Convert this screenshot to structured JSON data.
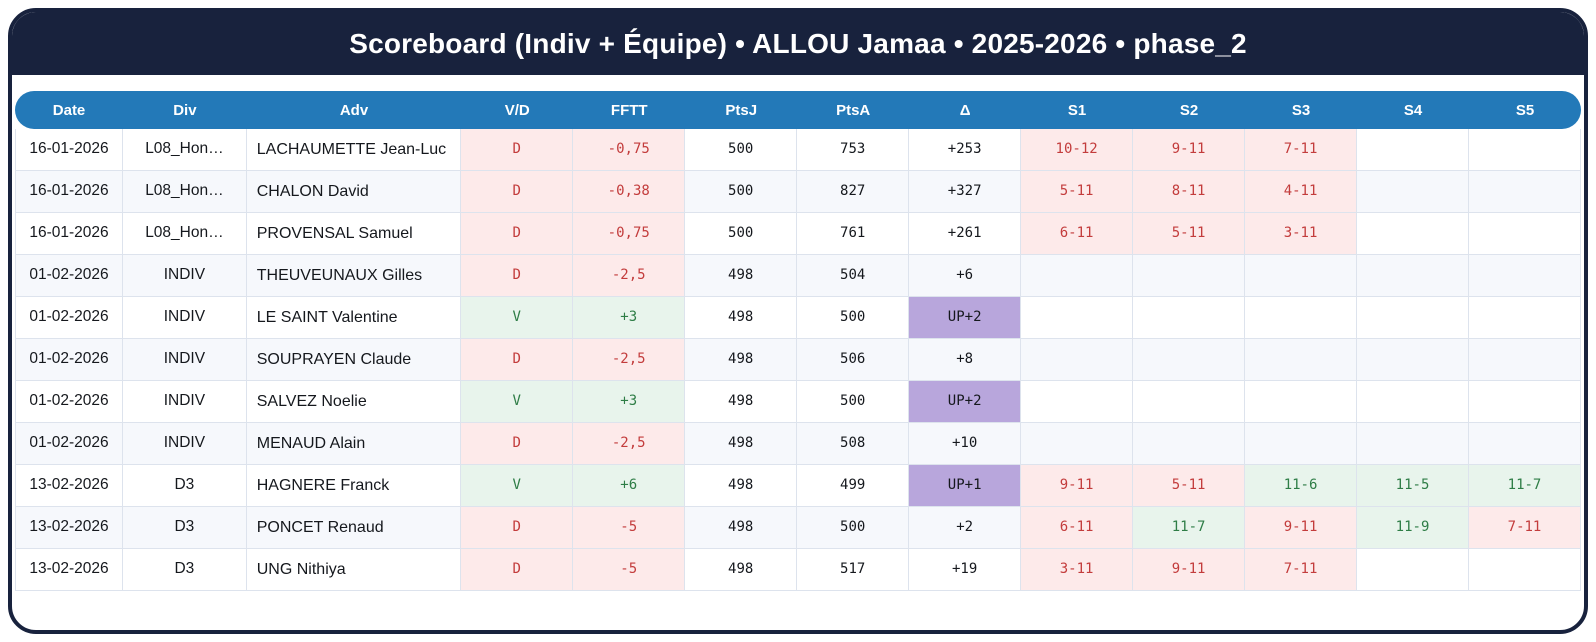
{
  "title": "Scoreboard (Indiv + Équipe) • ALLOU Jamaa • 2025-2026 • phase_2",
  "colors": {
    "frame_navy": "#18223d",
    "header_blue": "#2379b8",
    "win_bg": "#e8f4ec",
    "win_text": "#2e7d46",
    "loss_bg": "#fdeaea",
    "loss_text": "#c33c3c",
    "up_bg": "#b8a6dc",
    "row_stripe": "#f6f8fc"
  },
  "table": {
    "columns": [
      "Date",
      "Div",
      "Adv",
      "V/D",
      "FFTT",
      "PtsJ",
      "PtsA",
      "Δ",
      "S1",
      "S2",
      "S3",
      "S4",
      "S5"
    ],
    "rows": [
      {
        "date": "16-01-2026",
        "div": "L08_Hon…",
        "adv": "LACHAUMETTE Jean-Luc",
        "vd": "D",
        "fftt": "-0,75",
        "ptsj": "500",
        "ptsa": "753",
        "delta": "+253",
        "delta_up": false,
        "sets": [
          {
            "text": "10-12",
            "state": "l"
          },
          {
            "text": "9-11",
            "state": "l"
          },
          {
            "text": "7-11",
            "state": "l"
          },
          {
            "text": "",
            "state": ""
          },
          {
            "text": "",
            "state": ""
          }
        ]
      },
      {
        "date": "16-01-2026",
        "div": "L08_Hon…",
        "adv": "CHALON David",
        "vd": "D",
        "fftt": "-0,38",
        "ptsj": "500",
        "ptsa": "827",
        "delta": "+327",
        "delta_up": false,
        "sets": [
          {
            "text": "5-11",
            "state": "l"
          },
          {
            "text": "8-11",
            "state": "l"
          },
          {
            "text": "4-11",
            "state": "l"
          },
          {
            "text": "",
            "state": ""
          },
          {
            "text": "",
            "state": ""
          }
        ]
      },
      {
        "date": "16-01-2026",
        "div": "L08_Hon…",
        "adv": "PROVENSAL Samuel",
        "vd": "D",
        "fftt": "-0,75",
        "ptsj": "500",
        "ptsa": "761",
        "delta": "+261",
        "delta_up": false,
        "sets": [
          {
            "text": "6-11",
            "state": "l"
          },
          {
            "text": "5-11",
            "state": "l"
          },
          {
            "text": "3-11",
            "state": "l"
          },
          {
            "text": "",
            "state": ""
          },
          {
            "text": "",
            "state": ""
          }
        ]
      },
      {
        "date": "01-02-2026",
        "div": "INDIV",
        "adv": "THEUVEUNAUX Gilles",
        "vd": "D",
        "fftt": "-2,5",
        "ptsj": "498",
        "ptsa": "504",
        "delta": "+6",
        "delta_up": false,
        "sets": [
          {
            "text": "",
            "state": ""
          },
          {
            "text": "",
            "state": ""
          },
          {
            "text": "",
            "state": ""
          },
          {
            "text": "",
            "state": ""
          },
          {
            "text": "",
            "state": ""
          }
        ]
      },
      {
        "date": "01-02-2026",
        "div": "INDIV",
        "adv": "LE SAINT Valentine",
        "vd": "V",
        "fftt": "+3",
        "ptsj": "498",
        "ptsa": "500",
        "delta": "UP+2",
        "delta_up": true,
        "sets": [
          {
            "text": "",
            "state": ""
          },
          {
            "text": "",
            "state": ""
          },
          {
            "text": "",
            "state": ""
          },
          {
            "text": "",
            "state": ""
          },
          {
            "text": "",
            "state": ""
          }
        ]
      },
      {
        "date": "01-02-2026",
        "div": "INDIV",
        "adv": "SOUPRAYEN Claude",
        "vd": "D",
        "fftt": "-2,5",
        "ptsj": "498",
        "ptsa": "506",
        "delta": "+8",
        "delta_up": false,
        "sets": [
          {
            "text": "",
            "state": ""
          },
          {
            "text": "",
            "state": ""
          },
          {
            "text": "",
            "state": ""
          },
          {
            "text": "",
            "state": ""
          },
          {
            "text": "",
            "state": ""
          }
        ]
      },
      {
        "date": "01-02-2026",
        "div": "INDIV",
        "adv": "SALVEZ Noelie",
        "vd": "V",
        "fftt": "+3",
        "ptsj": "498",
        "ptsa": "500",
        "delta": "UP+2",
        "delta_up": true,
        "sets": [
          {
            "text": "",
            "state": ""
          },
          {
            "text": "",
            "state": ""
          },
          {
            "text": "",
            "state": ""
          },
          {
            "text": "",
            "state": ""
          },
          {
            "text": "",
            "state": ""
          }
        ]
      },
      {
        "date": "01-02-2026",
        "div": "INDIV",
        "adv": "MENAUD Alain",
        "vd": "D",
        "fftt": "-2,5",
        "ptsj": "498",
        "ptsa": "508",
        "delta": "+10",
        "delta_up": false,
        "sets": [
          {
            "text": "",
            "state": ""
          },
          {
            "text": "",
            "state": ""
          },
          {
            "text": "",
            "state": ""
          },
          {
            "text": "",
            "state": ""
          },
          {
            "text": "",
            "state": ""
          }
        ]
      },
      {
        "date": "13-02-2026",
        "div": "D3",
        "adv": "HAGNERE Franck",
        "vd": "V",
        "fftt": "+6",
        "ptsj": "498",
        "ptsa": "499",
        "delta": "UP+1",
        "delta_up": true,
        "sets": [
          {
            "text": "9-11",
            "state": "l"
          },
          {
            "text": "5-11",
            "state": "l"
          },
          {
            "text": "11-6",
            "state": "w"
          },
          {
            "text": "11-5",
            "state": "w"
          },
          {
            "text": "11-7",
            "state": "w"
          }
        ]
      },
      {
        "date": "13-02-2026",
        "div": "D3",
        "adv": "PONCET Renaud",
        "vd": "D",
        "fftt": "-5",
        "ptsj": "498",
        "ptsa": "500",
        "delta": "+2",
        "delta_up": false,
        "sets": [
          {
            "text": "6-11",
            "state": "l"
          },
          {
            "text": "11-7",
            "state": "w"
          },
          {
            "text": "9-11",
            "state": "l"
          },
          {
            "text": "11-9",
            "state": "w"
          },
          {
            "text": "7-11",
            "state": "l"
          }
        ]
      },
      {
        "date": "13-02-2026",
        "div": "D3",
        "adv": "UNG Nithiya",
        "vd": "D",
        "fftt": "-5",
        "ptsj": "498",
        "ptsa": "517",
        "delta": "+19",
        "delta_up": false,
        "sets": [
          {
            "text": "3-11",
            "state": "l"
          },
          {
            "text": "9-11",
            "state": "l"
          },
          {
            "text": "7-11",
            "state": "l"
          },
          {
            "text": "",
            "state": ""
          },
          {
            "text": "",
            "state": ""
          }
        ]
      }
    ]
  }
}
